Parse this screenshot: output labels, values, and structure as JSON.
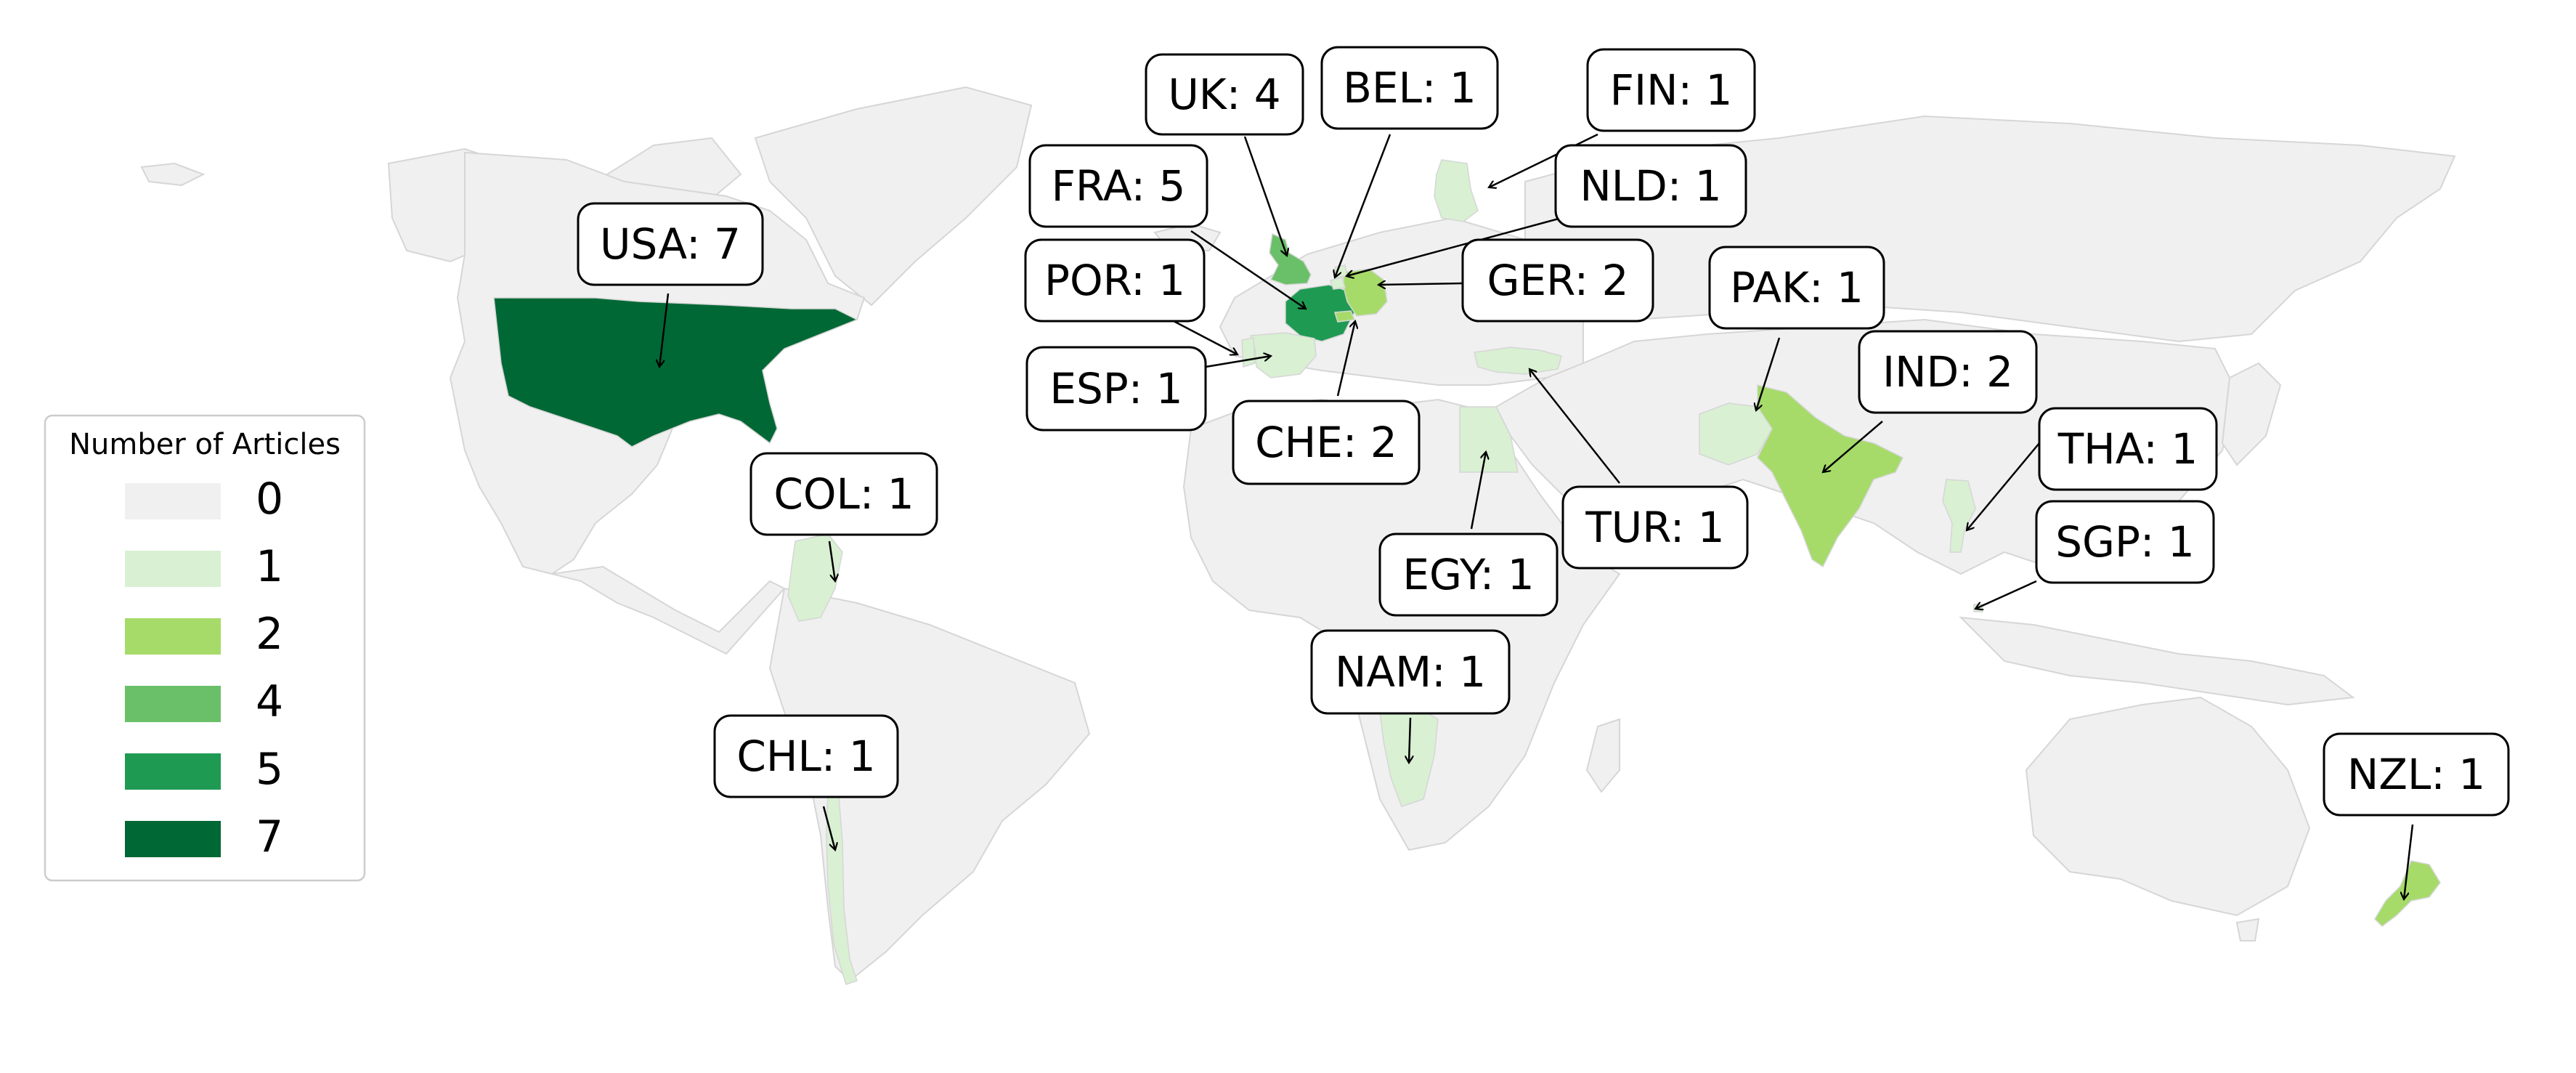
{
  "legend": {
    "title": "Number of Articles",
    "items": [
      {
        "label": "0",
        "color": "#f0f0f0"
      },
      {
        "label": "1",
        "color": "#d9f0d3"
      },
      {
        "label": "2",
        "color": "#a6db6a"
      },
      {
        "label": "4",
        "color": "#69c068"
      },
      {
        "label": "5",
        "color": "#1f9a52"
      },
      {
        "label": "7",
        "color": "#006835"
      }
    ]
  },
  "colors": {
    "land_default": "#f0f0f0",
    "border": "#d6d6d6",
    "callout_border": "#000000",
    "callout_fill": "#ffffff"
  },
  "callouts": [
    {
      "label": "USA: 7"
    },
    {
      "label": "UK: 4"
    },
    {
      "label": "BEL: 1"
    },
    {
      "label": "FIN: 1"
    },
    {
      "label": "FRA: 5"
    },
    {
      "label": "NLD: 1"
    },
    {
      "label": "POR: 1"
    },
    {
      "label": "GER: 2"
    },
    {
      "label": "PAK: 1"
    },
    {
      "label": "ESP: 1"
    },
    {
      "label": "IND: 2"
    },
    {
      "label": "CHE: 2"
    },
    {
      "label": "THA: 1"
    },
    {
      "label": "COL: 1"
    },
    {
      "label": "TUR: 1"
    },
    {
      "label": "SGP: 1"
    },
    {
      "label": "EGY: 1"
    },
    {
      "label": "NAM: 1"
    },
    {
      "label": "CHL: 1"
    },
    {
      "label": "NZL: 1"
    }
  ]
}
